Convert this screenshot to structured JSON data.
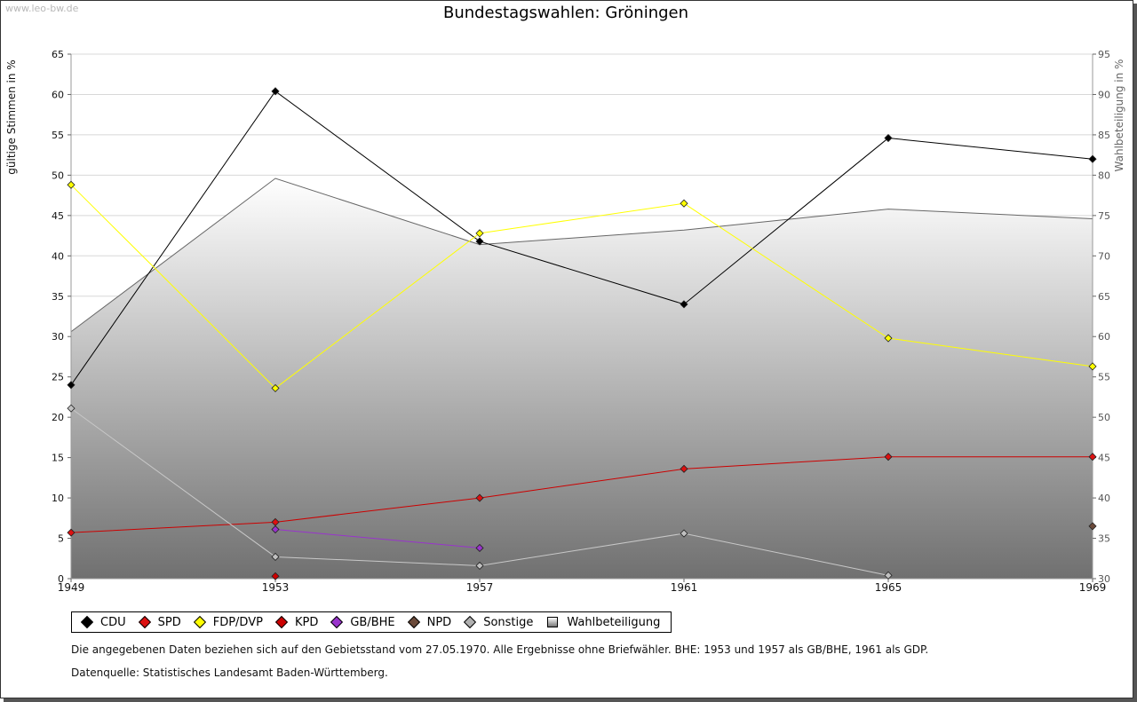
{
  "watermark": "www.leo-bw.de",
  "title": "Bundestagswahlen: Gröningen",
  "chart_data": {
    "type": "line",
    "title": "Bundestagswahlen: Gröningen",
    "x": [
      1949,
      1953,
      1957,
      1961,
      1965,
      1969
    ],
    "xlim": [
      1949,
      1969
    ],
    "ylabel": "gültige Stimmen in %",
    "ylim": [
      0,
      65
    ],
    "yticks": [
      0,
      5,
      10,
      15,
      20,
      25,
      30,
      35,
      40,
      45,
      50,
      55,
      60,
      65
    ],
    "y2label": "Wahlbeteiligung in %",
    "y2lim": [
      30,
      95
    ],
    "y2ticks": [
      30,
      35,
      40,
      45,
      50,
      55,
      60,
      65,
      70,
      75,
      80,
      85,
      90,
      95
    ],
    "grid": true,
    "area": {
      "name": "Wahlbeteiligung",
      "axis": "right",
      "x": [
        1949,
        1953,
        1957,
        1961,
        1965,
        1969
      ],
      "values": [
        60.6,
        79.6,
        71.4,
        73.2,
        75.8,
        74.6
      ]
    },
    "series": [
      {
        "name": "CDU",
        "color": "#000000",
        "line": "#000000",
        "x": [
          1949,
          1953,
          1957,
          1961,
          1965,
          1969
        ],
        "values": [
          24.0,
          60.4,
          41.8,
          34.0,
          54.6,
          52.0
        ]
      },
      {
        "name": "SPD",
        "color": "#dd1111",
        "line": "#cc0000",
        "x": [
          1949,
          1953,
          1957,
          1961,
          1965,
          1969
        ],
        "values": [
          5.7,
          7.0,
          10.0,
          13.6,
          15.1,
          15.1
        ]
      },
      {
        "name": "FDP/DVP",
        "color": "#ffff00",
        "line": "#ffff00",
        "x": [
          1949,
          1953,
          1957,
          1961,
          1965,
          1969
        ],
        "values": [
          48.8,
          23.6,
          42.8,
          46.5,
          29.8,
          26.3
        ]
      },
      {
        "name": "KPD",
        "color": "#cc0000",
        "line": "#cc0000",
        "x": [
          1953
        ],
        "values": [
          0.3
        ]
      },
      {
        "name": "GB/BHE",
        "color": "#9933cc",
        "line": "#9933cc",
        "x": [
          1953,
          1957
        ],
        "values": [
          6.1,
          3.8
        ]
      },
      {
        "name": "NPD",
        "color": "#6b4a3a",
        "line": "#6b4a3a",
        "x": [
          1969
        ],
        "values": [
          6.5
        ]
      },
      {
        "name": "Sonstige",
        "color": "#c0c0c0",
        "line": "#c8c8c8",
        "x": [
          1949,
          1953,
          1957,
          1961,
          1965
        ],
        "values": [
          21.1,
          2.7,
          1.6,
          5.6,
          0.4
        ]
      }
    ]
  },
  "legend": {
    "items": [
      {
        "label": "CDU",
        "color": "#000000"
      },
      {
        "label": "SPD",
        "color": "#dd1111"
      },
      {
        "label": "FDP/DVP",
        "color": "#ffff00"
      },
      {
        "label": "KPD",
        "color": "#cc0000"
      },
      {
        "label": "GB/BHE",
        "color": "#9933cc"
      },
      {
        "label": "NPD",
        "color": "#6b4a3a"
      },
      {
        "label": "Sonstige",
        "color": "#b0b0b0"
      },
      {
        "label": "Wahlbeteiligung",
        "color": "#888888"
      }
    ]
  },
  "notes": {
    "line1": "Die angegebenen Daten beziehen sich auf den Gebietsstand vom 27.05.1970. Alle Ergebnisse ohne Briefwähler. BHE: 1953 und 1957 als GB/BHE, 1961 als GDP.",
    "line2": "Datenquelle: Statistisches Landesamt Baden-Württemberg."
  }
}
